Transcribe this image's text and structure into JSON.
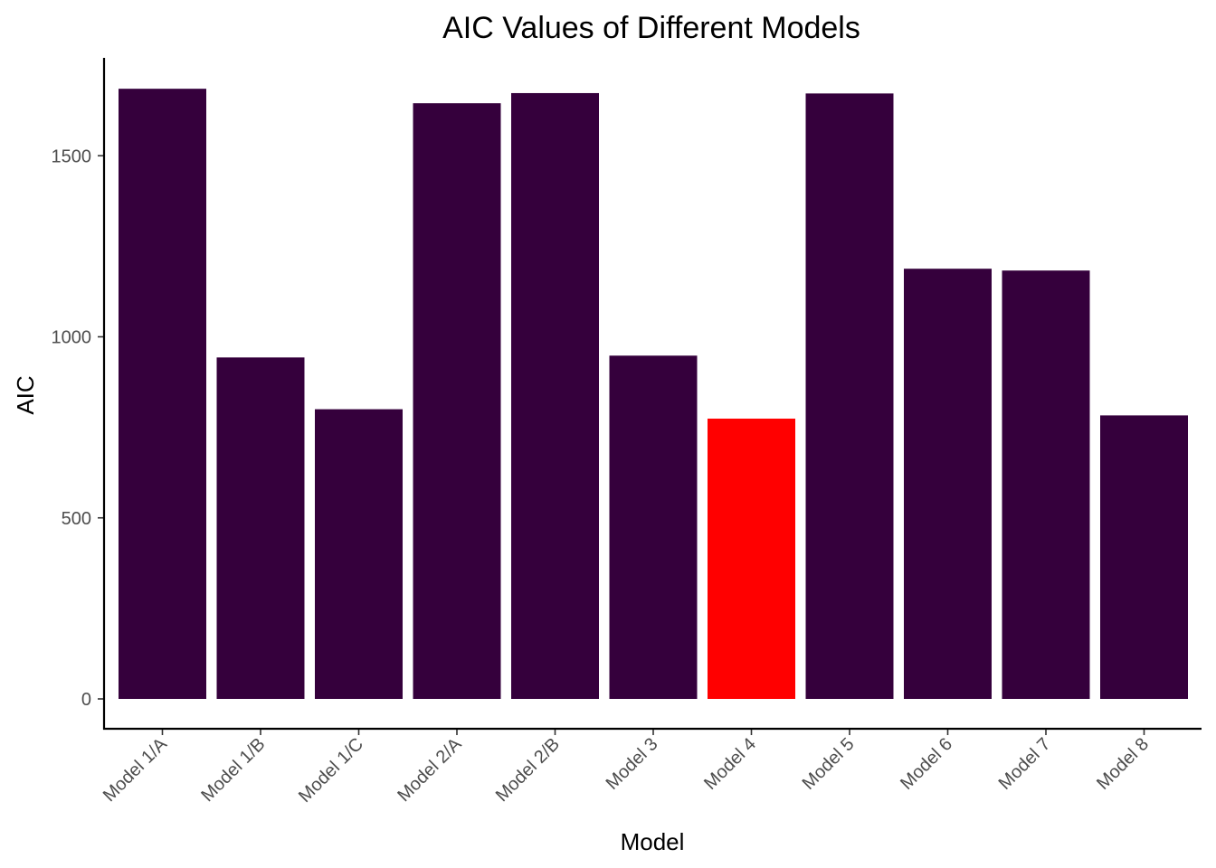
{
  "chart_data": {
    "type": "bar",
    "title": "AIC Values of Different Models",
    "xlabel": "Model",
    "ylabel": "AIC",
    "categories": [
      "Model 1/A",
      "Model 1/B",
      "Model 1/C",
      "Model 2/A",
      "Model 2/B",
      "Model 3",
      "Model 4",
      "Model 5",
      "Model 6",
      "Model 7",
      "Model 8"
    ],
    "values": [
      1685,
      943,
      800,
      1645,
      1673,
      948,
      774,
      1672,
      1188,
      1183,
      783
    ],
    "highlight": "Model 4",
    "colors": {
      "default": "#35003c",
      "highlight": "#ff0000"
    },
    "yticks": [
      0,
      500,
      1000,
      1500
    ],
    "ylim": [
      -80,
      1780
    ],
    "grid": false,
    "legend": "none"
  }
}
